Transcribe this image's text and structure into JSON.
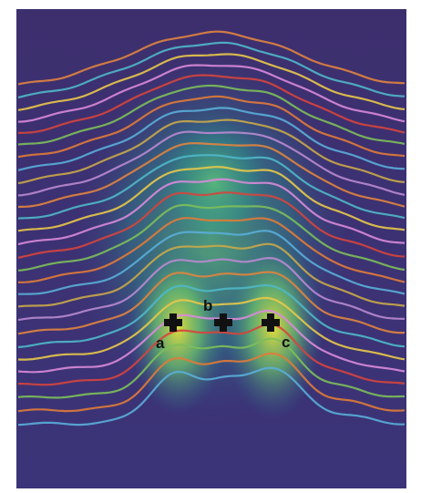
{
  "labels": [
    {
      "text": "a"
    },
    {
      "text": "b"
    },
    {
      "text": "c"
    }
  ]
}
